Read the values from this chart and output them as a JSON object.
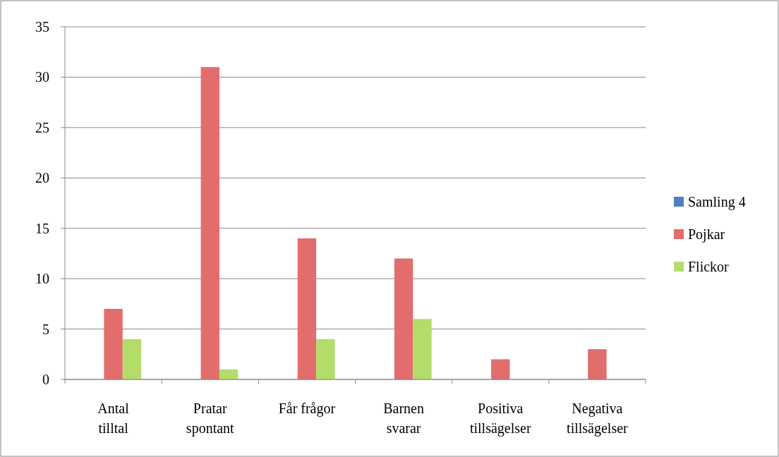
{
  "chart_data": {
    "type": "bar",
    "categories": [
      "Antal tilltal",
      "Pratar spontant",
      "Får frågor",
      "Barnen svarar",
      "Positiva tillsägelser",
      "Negativa tillsägelser"
    ],
    "series": [
      {
        "name": "Samling 4",
        "color": "#4f81bd",
        "values": [
          null,
          null,
          null,
          null,
          null,
          null
        ]
      },
      {
        "name": "Pojkar",
        "color": "#e36c6c",
        "values": [
          7,
          31,
          14,
          12,
          2,
          3
        ]
      },
      {
        "name": "Flickor",
        "color": "#b3dc6a",
        "values": [
          4,
          1,
          4,
          6,
          null,
          null
        ]
      }
    ],
    "ylim": [
      0,
      35
    ],
    "yticks": [
      0,
      5,
      10,
      15,
      20,
      25,
      30,
      35
    ],
    "grid": "y",
    "legend": "right"
  }
}
